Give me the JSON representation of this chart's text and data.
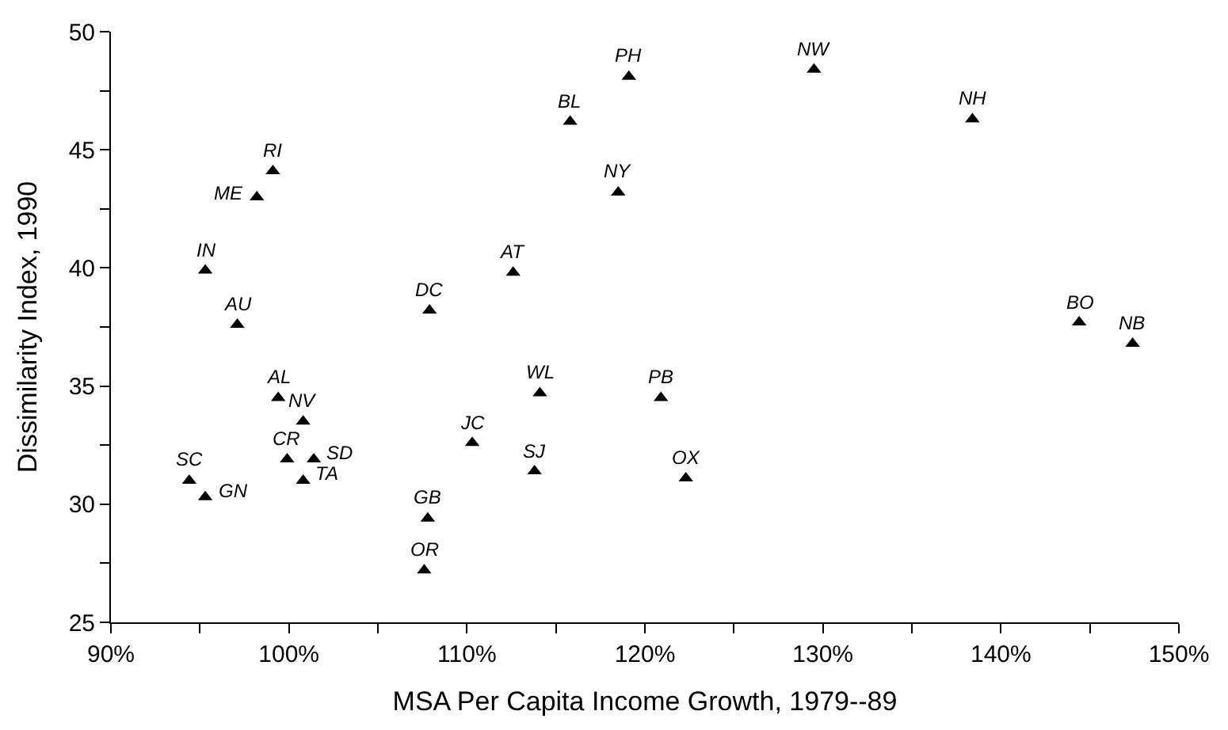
{
  "chart_data": {
    "type": "scatter",
    "xlabel": "MSA Per Capita Income Growth, 1979--89",
    "ylabel": "Dissimilarity Index, 1990",
    "x": [
      99.1,
      98.2,
      95.3,
      97.1,
      107.9,
      112.6,
      115.8,
      119.1,
      118.5,
      129.5,
      138.4,
      144.4,
      147.4,
      99.4,
      100.8,
      99.9,
      101.4,
      100.8,
      94.4,
      95.3,
      107.8,
      107.6,
      110.3,
      114.1,
      113.8,
      120.9,
      122.3
    ],
    "values": [
      44.1,
      43.0,
      39.9,
      37.6,
      38.2,
      39.8,
      46.2,
      48.1,
      43.2,
      48.4,
      46.3,
      37.7,
      36.8,
      34.5,
      33.5,
      31.9,
      31.9,
      31.0,
      31.0,
      30.3,
      29.4,
      27.2,
      32.6,
      34.7,
      31.4,
      34.5,
      31.1
    ],
    "color": "#000000",
    "marker": "triangle",
    "xlim": [
      90,
      150
    ],
    "xticks": [
      {
        "value": 90,
        "label": "90%"
      },
      {
        "value": 95,
        "label": null
      },
      {
        "value": 100,
        "label": "100%"
      },
      {
        "value": 105,
        "label": null
      },
      {
        "value": 110,
        "label": "110%"
      },
      {
        "value": 115,
        "label": null
      },
      {
        "value": 120,
        "label": "120%"
      },
      {
        "value": 125,
        "label": null
      },
      {
        "value": 130,
        "label": "130%"
      },
      {
        "value": 135,
        "label": null
      },
      {
        "value": 140,
        "label": "140%"
      },
      {
        "value": 145,
        "label": null
      },
      {
        "value": 150,
        "label": "150%"
      }
    ],
    "ylim": [
      25,
      50
    ],
    "yticks": [
      25,
      {
        "value": 27.5,
        "label": null
      },
      30,
      {
        "value": 32.5,
        "label": null
      },
      35,
      {
        "value": 37.5,
        "label": null
      },
      40,
      {
        "value": 42.5,
        "label": null
      },
      45,
      {
        "value": 47.5,
        "label": null
      },
      50
    ],
    "annotations": [
      {
        "text": "RI",
        "x": 99.1,
        "y": 44.1
      },
      {
        "text": "ME",
        "x": 98.2,
        "y": 43.0
      },
      {
        "text": "IN",
        "x": 95.3,
        "y": 39.9
      },
      {
        "text": "AU",
        "x": 97.1,
        "y": 37.6
      },
      {
        "text": "DC",
        "x": 107.9,
        "y": 38.2
      },
      {
        "text": "AT",
        "x": 112.6,
        "y": 39.8
      },
      {
        "text": "BL",
        "x": 115.8,
        "y": 46.2
      },
      {
        "text": "PH",
        "x": 119.1,
        "y": 48.1
      },
      {
        "text": "NY",
        "x": 118.5,
        "y": 43.2
      },
      {
        "text": "NW",
        "x": 129.5,
        "y": 48.4
      },
      {
        "text": "NH",
        "x": 138.4,
        "y": 46.3
      },
      {
        "text": "BO",
        "x": 144.4,
        "y": 37.7
      },
      {
        "text": "NB",
        "x": 147.4,
        "y": 36.8
      },
      {
        "text": "AL",
        "x": 99.4,
        "y": 34.5
      },
      {
        "text": "NV",
        "x": 100.8,
        "y": 33.5
      },
      {
        "text": "CR",
        "x": 99.9,
        "y": 31.9
      },
      {
        "text": "SD",
        "x": 101.4,
        "y": 31.9
      },
      {
        "text": "TA",
        "x": 100.8,
        "y": 31.0
      },
      {
        "text": "SC",
        "x": 94.4,
        "y": 31.0
      },
      {
        "text": "GN",
        "x": 95.3,
        "y": 30.3
      },
      {
        "text": "GB",
        "x": 107.8,
        "y": 29.4
      },
      {
        "text": "OR",
        "x": 107.6,
        "y": 27.2
      },
      {
        "text": "JC",
        "x": 110.3,
        "y": 32.6
      },
      {
        "text": "WL",
        "x": 114.1,
        "y": 34.7
      },
      {
        "text": "SJ",
        "x": 113.8,
        "y": 31.4
      },
      {
        "text": "PB",
        "x": 120.9,
        "y": 34.5
      },
      {
        "text": "OX",
        "x": 122.3,
        "y": 31.1
      }
    ]
  }
}
